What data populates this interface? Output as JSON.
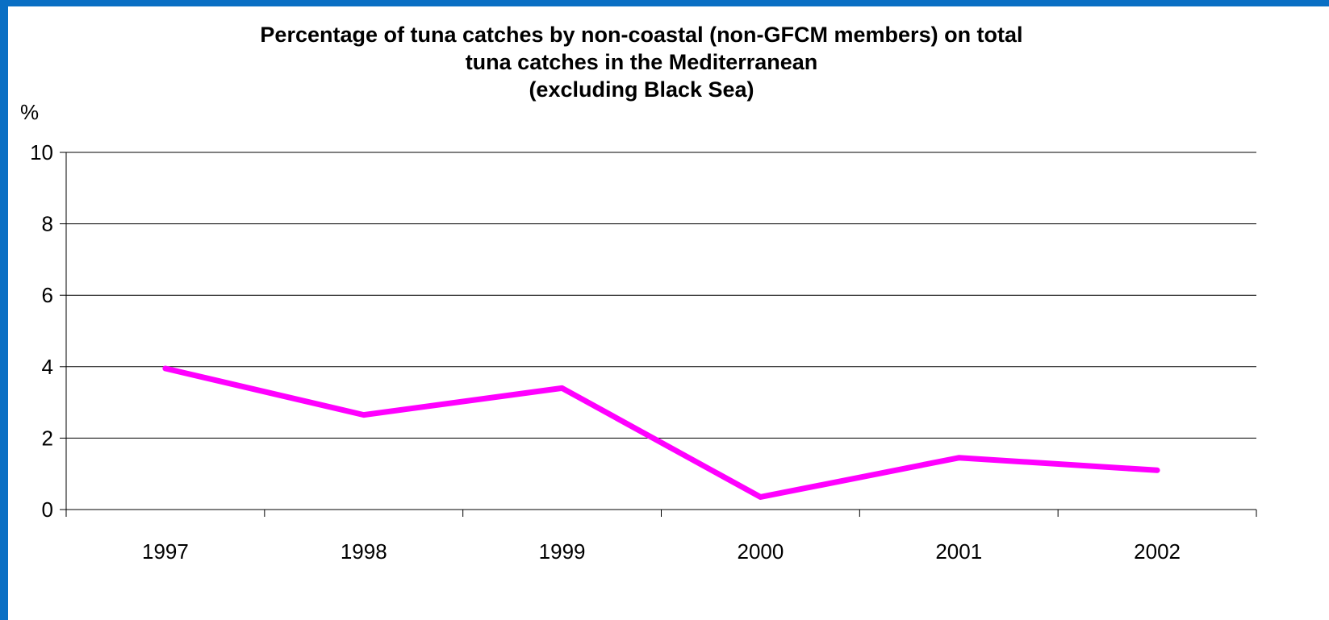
{
  "chart_data": {
    "type": "line",
    "title": "Percentage of tuna catches by non-coastal (non-GFCM members) on total\ntuna catches in the Mediterranean\n(excluding Black Sea)",
    "ylabel": "%",
    "xlabel": "",
    "categories": [
      "1997",
      "1998",
      "1999",
      "2000",
      "2001",
      "2002"
    ],
    "series": [
      {
        "values": [
          3.95,
          2.65,
          3.4,
          0.35,
          1.45,
          1.1
        ]
      }
    ],
    "ylim": [
      0,
      10
    ],
    "yticks": [
      "0",
      "2",
      "4",
      "6",
      "8",
      "10"
    ],
    "grid": true,
    "legend": "none",
    "colors": {
      "line": "#ff00ff",
      "frame": "#0a6fc4",
      "grid": "#000000"
    }
  }
}
